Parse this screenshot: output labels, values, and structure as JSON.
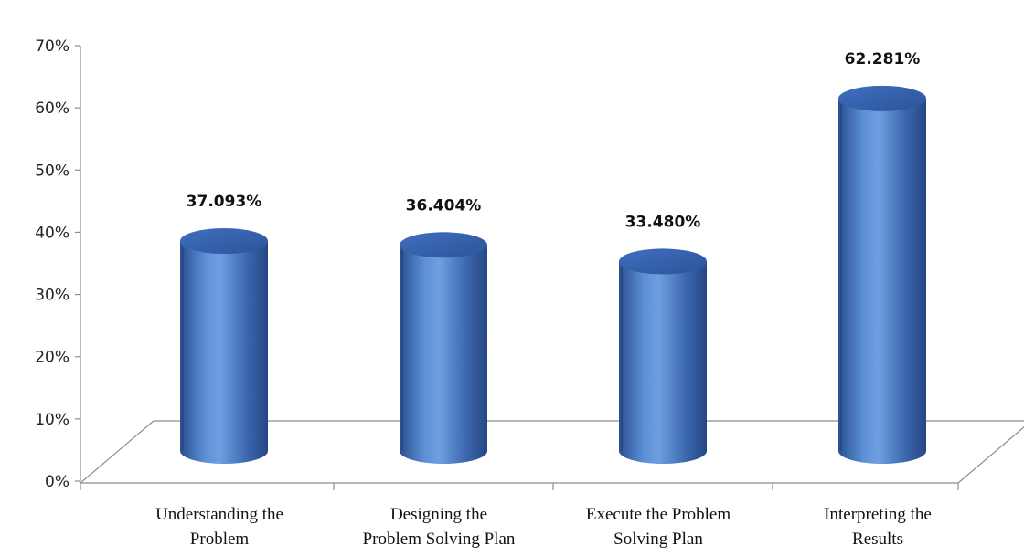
{
  "chart_data": {
    "type": "bar",
    "style": "3d-cylinder",
    "title": "",
    "xlabel": "",
    "ylabel": "",
    "ylim": [
      0,
      70
    ],
    "y_ticks": [
      "0%",
      "10%",
      "20%",
      "30%",
      "40%",
      "50%",
      "60%",
      "70%"
    ],
    "y_tick_values": [
      0,
      10,
      20,
      30,
      40,
      50,
      60,
      70
    ],
    "categories": [
      [
        "Understanding the",
        "Problem"
      ],
      [
        "Designing the",
        "Problem Solving Plan"
      ],
      [
        "Execute the Problem",
        "Solving Plan"
      ],
      [
        "Interpreting the",
        "Results"
      ]
    ],
    "values": [
      37.093,
      36.404,
      33.48,
      62.281
    ],
    "data_labels": [
      "37.093%",
      "36.404%",
      "33.480%",
      "62.281%"
    ],
    "grid": false,
    "legend": "none",
    "bar_color": "#4472C4"
  }
}
